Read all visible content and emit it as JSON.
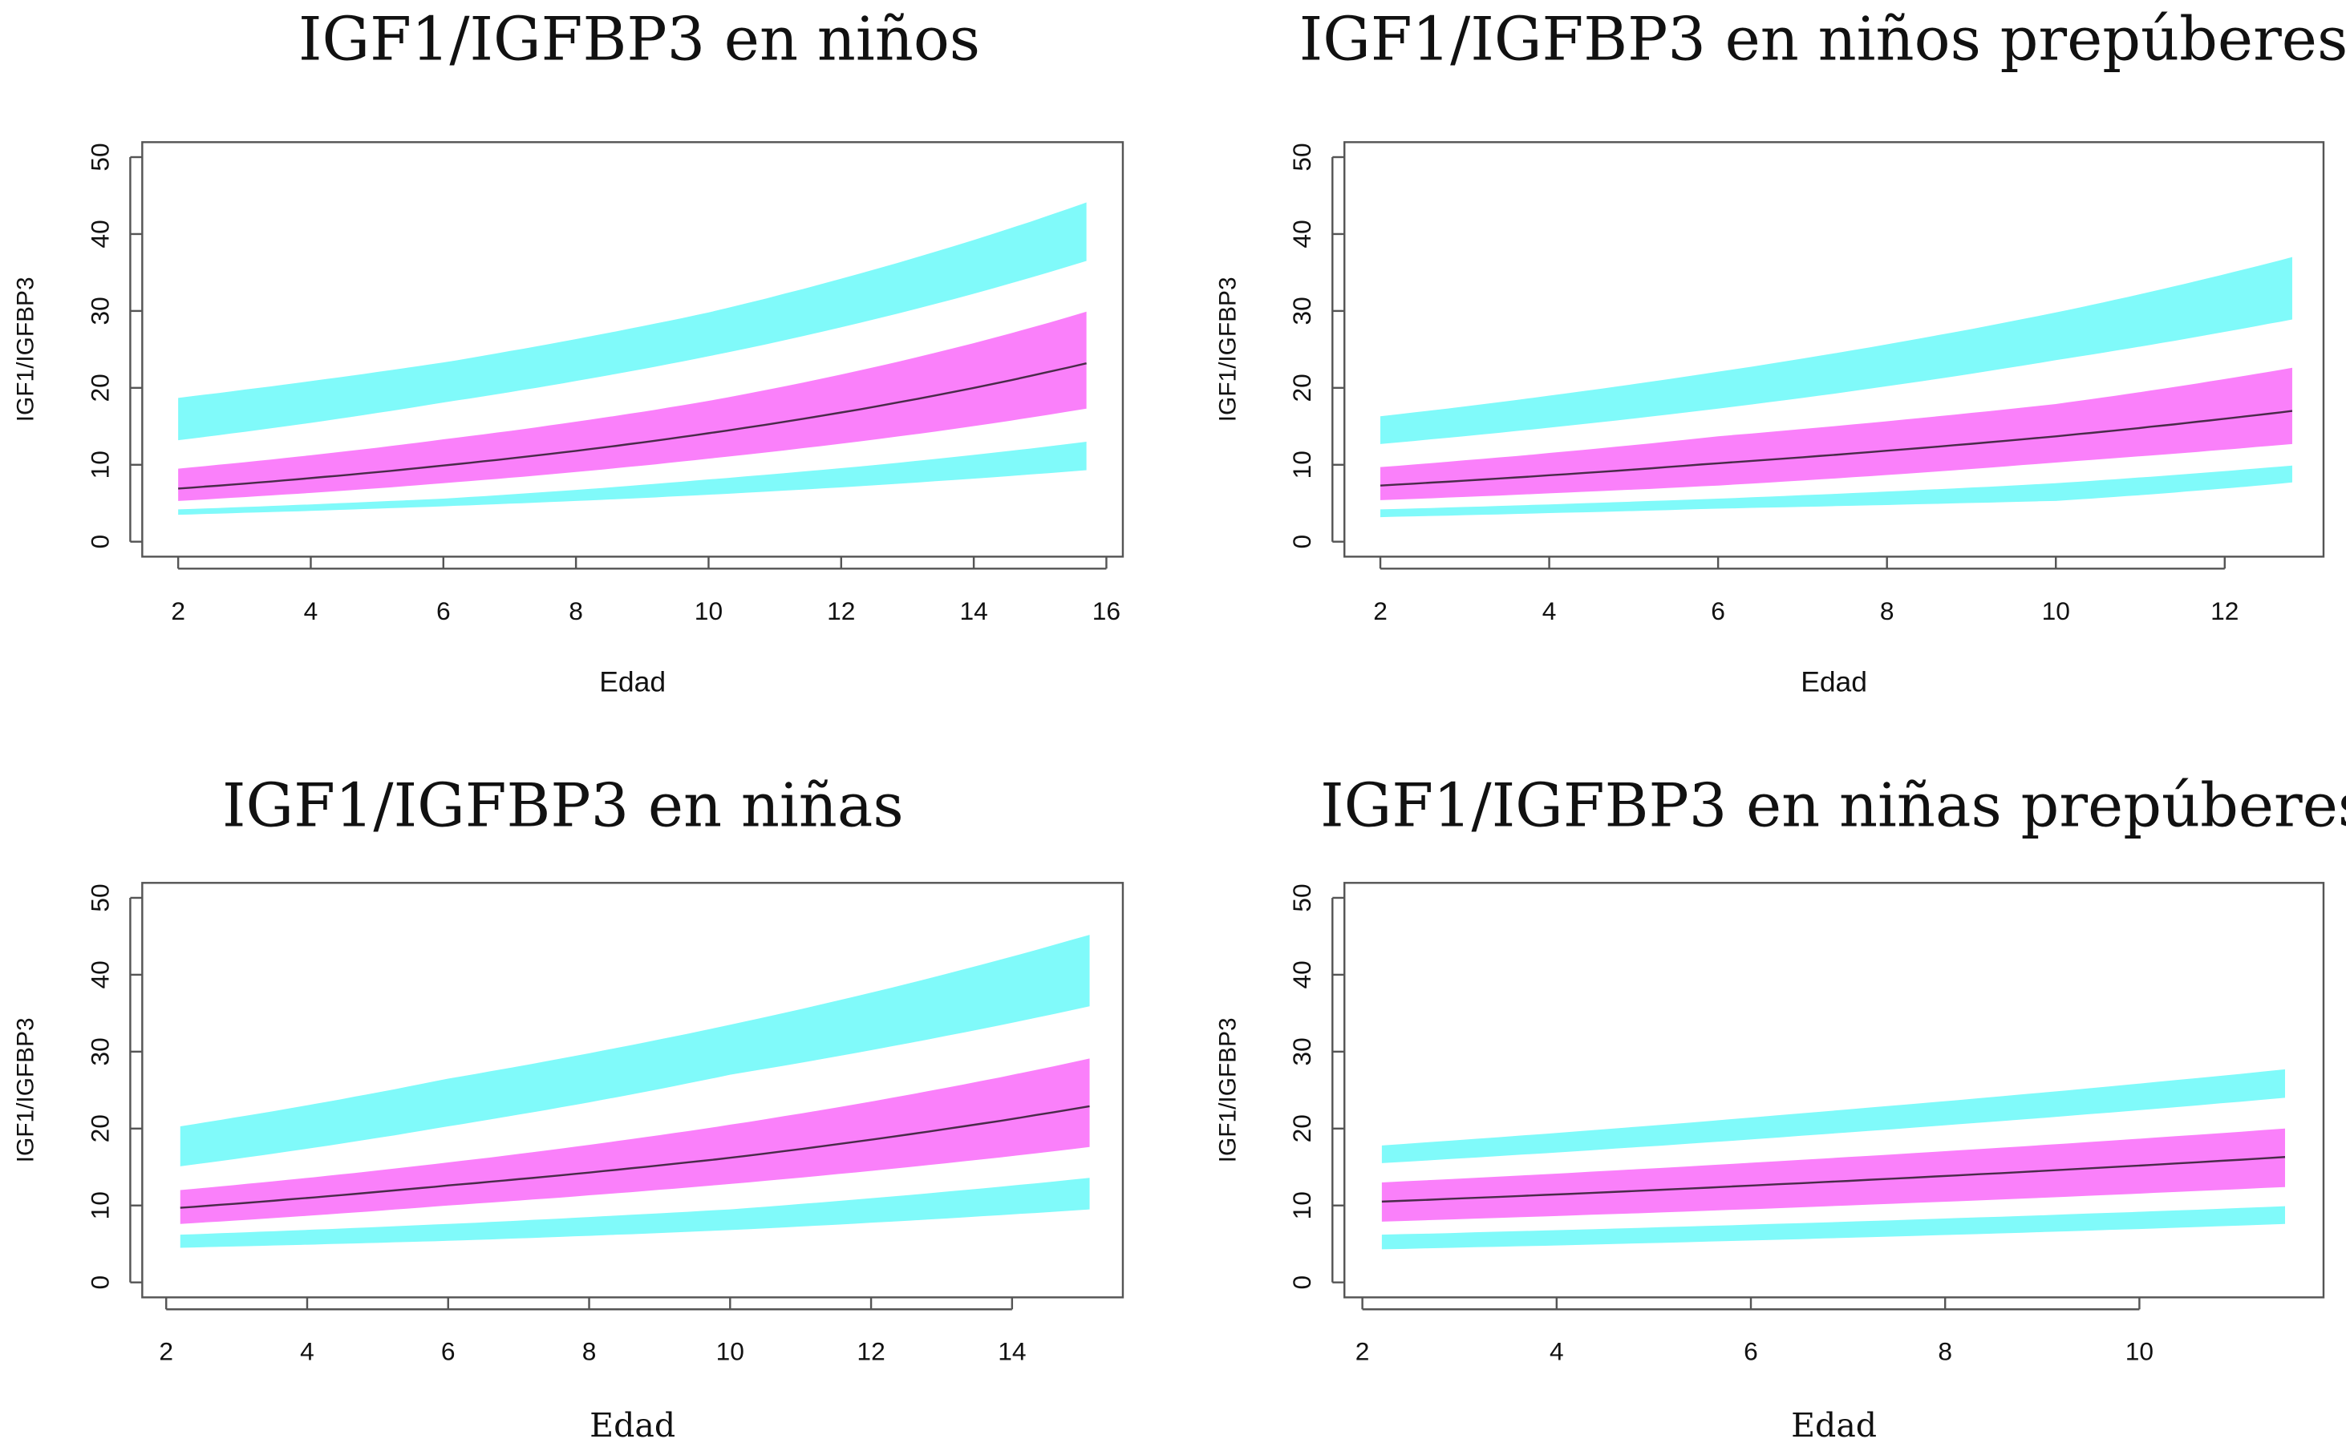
{
  "colors": {
    "outer_band": "#80fafa",
    "inner_band": "#fa80fa",
    "median_line": "#4a2a4a",
    "axis": "#555555"
  },
  "chart_data": [
    {
      "type": "area",
      "title": "IGF1/IGFBP3 en niños",
      "xlabel": "Edad",
      "ylabel": "IGF1/IGFBP3",
      "xlim": [
        2,
        16
      ],
      "ylim": [
        0,
        50
      ],
      "xticks": [
        "2",
        "4",
        "6",
        "8",
        "10",
        "12",
        "14",
        "16"
      ],
      "yticks": [
        "0",
        "10",
        "20",
        "30",
        "40",
        "50"
      ],
      "grid": false,
      "x": [
        2,
        6,
        10,
        15.7
      ],
      "bands": {
        "upper_outer": {
          "high": [
            18.7,
            23.3,
            29.8,
            44.1
          ],
          "low": [
            13.2,
            18.1,
            24.1,
            36.5
          ]
        },
        "central": {
          "high": [
            9.5,
            13.3,
            18.3,
            29.9
          ],
          "low": [
            5.3,
            7.6,
            10.8,
            17.3
          ]
        },
        "lower_outer": {
          "high": [
            4.2,
            5.6,
            8.1,
            13.0
          ],
          "low": [
            3.5,
            4.6,
            6.1,
            9.3
          ]
        }
      },
      "median": [
        6.9,
        9.9,
        14.1,
        23.2
      ]
    },
    {
      "type": "area",
      "title": "IGF1/IGFBP3 en niños prepúberes",
      "xlabel": "Edad",
      "ylabel": "IGF1/IGFBP3",
      "xlim": [
        2,
        12.8
      ],
      "ylim": [
        0,
        50
      ],
      "xticks": [
        "2",
        "4",
        "6",
        "8",
        "10",
        "12"
      ],
      "yticks": [
        "0",
        "10",
        "20",
        "30",
        "40",
        "50"
      ],
      "grid": false,
      "x": [
        2,
        6,
        10,
        12.8
      ],
      "bands": {
        "upper_outer": {
          "high": [
            16.3,
            22.1,
            29.8,
            37.0
          ],
          "low": [
            12.7,
            17.3,
            23.6,
            28.9
          ]
        },
        "central": {
          "high": [
            9.7,
            13.7,
            17.9,
            22.6
          ],
          "low": [
            5.4,
            7.3,
            10.3,
            12.7
          ]
        },
        "lower_outer": {
          "high": [
            4.2,
            5.6,
            7.6,
            9.9
          ],
          "low": [
            3.2,
            4.3,
            5.3,
            7.7
          ]
        }
      },
      "median": [
        7.3,
        10.2,
        13.7,
        17.0
      ]
    },
    {
      "type": "area",
      "title": "IGF1/IGFBP3 en niñas",
      "xlabel": "Edad",
      "ylabel": "IGF1/IGFBP3",
      "xlim": [
        2,
        15.1
      ],
      "ylim": [
        0,
        50
      ],
      "xticks": [
        "2",
        "4",
        "6",
        "8",
        "10",
        "12",
        "14"
      ],
      "yticks": [
        "0",
        "10",
        "20",
        "30",
        "40",
        "50"
      ],
      "grid": false,
      "x": [
        2.2,
        6,
        10,
        15.1
      ],
      "bands": {
        "upper_outer": {
          "high": [
            20.3,
            26.5,
            33.5,
            45.2
          ],
          "low": [
            15.1,
            20.3,
            27.0,
            35.9
          ]
        },
        "central": {
          "high": [
            12.0,
            15.6,
            20.5,
            29.1
          ],
          "low": [
            7.6,
            10.0,
            12.8,
            17.6
          ]
        },
        "lower_outer": {
          "high": [
            6.2,
            7.6,
            9.5,
            13.6
          ],
          "low": [
            4.5,
            5.4,
            6.8,
            9.5
          ]
        }
      },
      "median": [
        9.7,
        12.6,
        16.2,
        22.9
      ]
    },
    {
      "type": "area",
      "title": "IGF1/IGFBP3 en niñas prepúberes",
      "xlabel": "Edad",
      "ylabel": "IGF1/IGFBP3",
      "xlim": [
        2,
        11.5
      ],
      "ylim": [
        0,
        50
      ],
      "xticks": [
        "2",
        "4",
        "6",
        "8",
        "10"
      ],
      "yticks": [
        "0",
        "10",
        "20",
        "30",
        "40",
        "50"
      ],
      "grid": false,
      "x": [
        2.2,
        7,
        11.5
      ],
      "bands": {
        "upper_outer": {
          "high": [
            17.8,
            22.5,
            27.7
          ],
          "low": [
            15.5,
            19.5,
            24.0
          ]
        },
        "central": {
          "high": [
            13.0,
            16.3,
            20.0
          ],
          "low": [
            7.9,
            10.0,
            12.4
          ]
        },
        "lower_outer": {
          "high": [
            6.2,
            7.9,
            9.9
          ],
          "low": [
            4.3,
            5.8,
            7.6
          ]
        }
      },
      "median": [
        10.5,
        13.2,
        16.3
      ]
    }
  ]
}
